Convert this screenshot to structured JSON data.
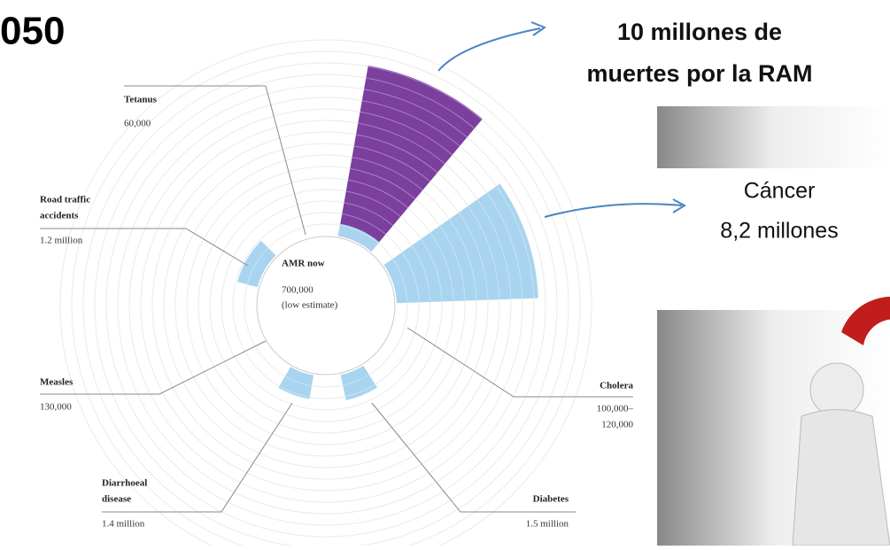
{
  "header": {
    "title": "050"
  },
  "annotations": {
    "amr_2050": [
      "10 millones de",
      "muertes por la RAM"
    ],
    "cancer": [
      "Cáncer",
      "8,2 millones"
    ]
  },
  "wedges": [
    {
      "name": "AMR 2050",
      "value": 10000000,
      "color": "#7b3f9e"
    },
    {
      "name": "Cancer",
      "value": 8200000,
      "color": "#a8d4ef"
    },
    {
      "name": "AMR now",
      "value": 700000,
      "color": "#a8d4ef"
    },
    {
      "name": "Road traffic",
      "value": 1200000,
      "color": "#a8d4ef"
    },
    {
      "name": "Diarrhoeal",
      "value": 1400000,
      "color": "#a8d4ef"
    },
    {
      "name": "Diabetes",
      "value": 1500000,
      "color": "#a8d4ef"
    }
  ],
  "labels": {
    "tetanus": {
      "name": "Tetanus",
      "value": "60,000"
    },
    "road": {
      "name": [
        "Road traffic",
        "accidents"
      ],
      "value": "1.2 million"
    },
    "measles": {
      "name": "Measles",
      "value": "130,000"
    },
    "diarrhoeal": {
      "name": [
        "Diarrhoeal",
        "disease"
      ],
      "value": "1.4 million"
    },
    "diabetes": {
      "name": "Diabetes",
      "value": "1.5 million"
    },
    "cholera": {
      "name": "Cholera",
      "value": [
        "100,000–",
        "120,000"
      ]
    },
    "amr_now": {
      "name": "AMR now",
      "value": [
        "700,000",
        "(low estimate)"
      ]
    }
  }
}
